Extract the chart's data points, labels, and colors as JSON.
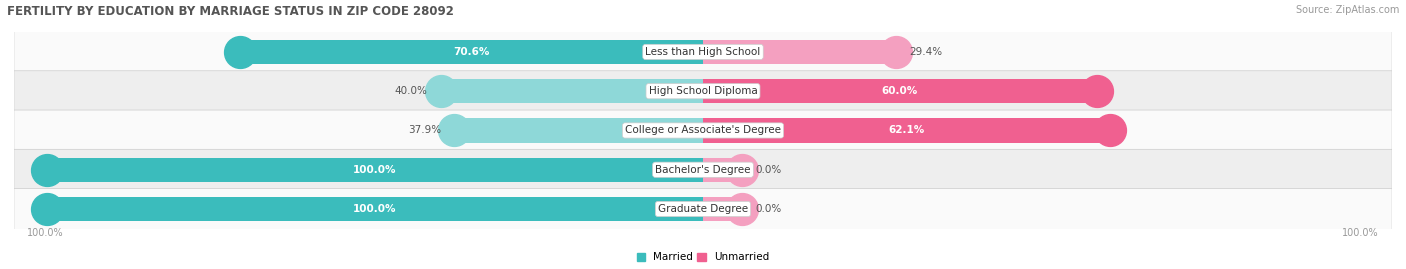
{
  "title": "FERTILITY BY EDUCATION BY MARRIAGE STATUS IN ZIP CODE 28092",
  "source": "Source: ZipAtlas.com",
  "categories": [
    "Less than High School",
    "High School Diploma",
    "College or Associate's Degree",
    "Bachelor's Degree",
    "Graduate Degree"
  ],
  "married": [
    70.6,
    40.0,
    37.9,
    100.0,
    100.0
  ],
  "unmarried": [
    29.4,
    60.0,
    62.1,
    0.0,
    0.0
  ],
  "married_color_full": "#3BBCBC",
  "married_color_light": "#8ED8D8",
  "unmarried_color_full": "#F06090",
  "unmarried_color_light": "#F4A0C0",
  "row_bg_even": "#FAFAFA",
  "row_bg_odd": "#EEEEEE",
  "title_fontsize": 8.5,
  "source_fontsize": 7,
  "label_fontsize": 7.5,
  "cat_fontsize": 7.5,
  "bar_height": 0.62
}
